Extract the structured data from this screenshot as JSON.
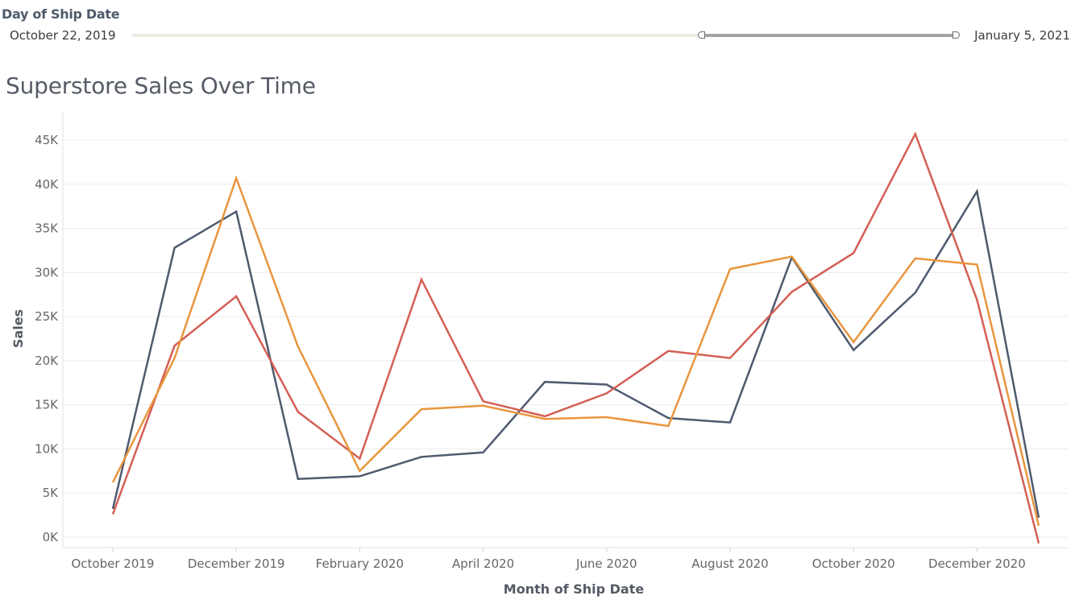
{
  "filter": {
    "title": "Day of Ship Date",
    "range_start": "October 22, 2019",
    "range_end": "January 5, 2021",
    "selected_range_fraction": [
      0.69,
      1.0
    ]
  },
  "chart_data": {
    "type": "line",
    "title": "Superstore Sales Over Time",
    "xlabel": "Month of Ship Date",
    "ylabel": "Sales",
    "ylim": [
      0,
      47500
    ],
    "grid": true,
    "categories": [
      "Oct 2019",
      "Nov 2019",
      "Dec 2019",
      "Jan 2020",
      "Feb 2020",
      "Mar 2020",
      "Apr 2020",
      "May 2020",
      "Jun 2020",
      "Jul 2020",
      "Aug 2020",
      "Sep 2020",
      "Oct 2020",
      "Nov 2020",
      "Dec 2020",
      "Jan 2021"
    ],
    "x_tick_labels": [
      "October 2019",
      "December 2019",
      "February 2020",
      "April 2020",
      "June 2020",
      "August 2020",
      "October 2020",
      "December 2020"
    ],
    "x_tick_indices": [
      0,
      2,
      4,
      6,
      8,
      10,
      12,
      14
    ],
    "y_ticks": [
      0,
      5000,
      10000,
      15000,
      20000,
      25000,
      30000,
      35000,
      40000,
      45000
    ],
    "y_tick_labels": [
      "0K",
      "5K",
      "10K",
      "15K",
      "20K",
      "25K",
      "30K",
      "35K",
      "40K",
      "45K"
    ],
    "series": [
      {
        "color": "#4e5a6e",
        "values": [
          3200,
          32800,
          36900,
          6600,
          6900,
          9100,
          9600,
          17600,
          17300,
          13500,
          13000,
          31700,
          21200,
          27700,
          39200,
          2200
        ]
      },
      {
        "color": "#d45f55",
        "values": [
          2600,
          21700,
          27300,
          14200,
          8900,
          29200,
          15400,
          13700,
          16300,
          21100,
          20300,
          27800,
          32200,
          45700,
          26900,
          -700
        ]
      },
      {
        "color": "#e8963e",
        "values": [
          6200,
          20300,
          40700,
          21600,
          7500,
          14500,
          14900,
          13400,
          13600,
          12600,
          30400,
          31800,
          22100,
          31600,
          30900,
          1300
        ]
      }
    ]
  }
}
